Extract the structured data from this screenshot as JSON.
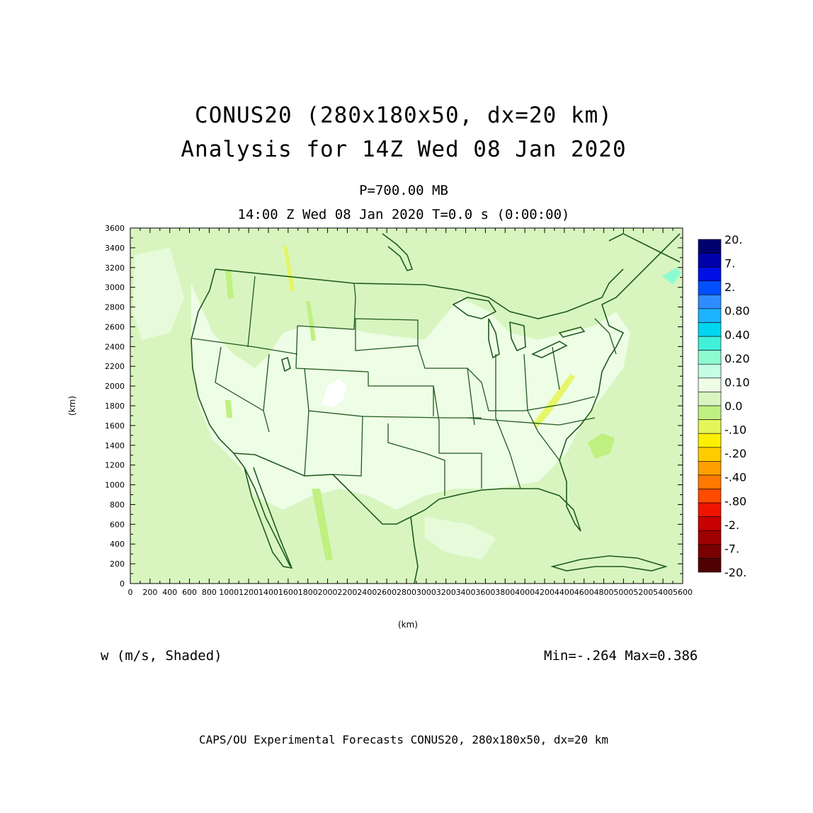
{
  "header": {
    "title": "CONUS20 (280x180x50, dx=20 km)",
    "subtitle": "Analysis for 14Z Wed 08 Jan 2020",
    "level": "P=700.00 MB",
    "time_line": "14:00 Z Wed 08 Jan 2020    T=0.0 s (0:00:00)"
  },
  "field": {
    "description": "w (m/s, Shaded)",
    "minmax": "Min=-.264 Max=0.386"
  },
  "footer": "CAPS/OU Experimental Forecasts  CONUS20, 280x180x50, dx=20 km",
  "map": {
    "boundary_color": "#1f5a1f",
    "background_color": "#d8f5c0",
    "near_zero_color": "#eefde6"
  },
  "chart_data": {
    "type": "heatmap",
    "xlabel": "(km)",
    "ylabel": "(km)",
    "xlim": [
      0,
      5600
    ],
    "ylim": [
      0,
      3600
    ],
    "x_ticks": [
      0,
      200,
      400,
      600,
      800,
      1000,
      1200,
      1400,
      1600,
      1800,
      2000,
      2200,
      2400,
      2600,
      2800,
      3000,
      3200,
      3400,
      3600,
      3800,
      4000,
      4200,
      4400,
      4600,
      4800,
      5000,
      5200,
      5400,
      5600
    ],
    "x_tick_labels": [
      "0",
      "200",
      "400",
      "600",
      "800",
      "1000",
      "1200",
      "1400",
      "1600",
      "1800",
      "2000",
      "2200",
      "2400",
      "2600",
      "2800",
      "3000",
      "3200",
      "3400",
      "3600",
      "3800",
      "4000",
      "4200",
      "4400",
      "4600",
      "4800",
      "5000",
      "5200",
      "5400",
      "5600"
    ],
    "y_ticks": [
      0,
      200,
      400,
      600,
      800,
      1000,
      1200,
      1400,
      1600,
      1800,
      2000,
      2200,
      2400,
      2600,
      2800,
      3000,
      3200,
      3400,
      3600
    ],
    "y_tick_labels": [
      "0",
      "200",
      "400",
      "600",
      "800",
      "1000",
      "1200",
      "1400",
      "1600",
      "1800",
      "2000",
      "2200",
      "2400",
      "2600",
      "2800",
      "3000",
      "3200",
      "3400",
      "3600"
    ],
    "colorbar": {
      "labels": [
        "20.",
        "7.",
        "2.",
        "0.80",
        "0.40",
        "0.20",
        "0.10",
        "0.0",
        "-.10",
        "-.20",
        "-.40",
        "-.80",
        "-2.",
        "-7.",
        "-20."
      ],
      "colors": [
        "#00006e",
        "#0000aa",
        "#0010e6",
        "#0050ff",
        "#2e8cff",
        "#1ab4ff",
        "#00d6f0",
        "#40f0d8",
        "#8cfcd0",
        "#c4fde4",
        "#eefde6",
        "#d8f5c0",
        "#c0f080",
        "#e4f55a",
        "#fcf000",
        "#ffcc00",
        "#ffa000",
        "#ff7800",
        "#ff4a00",
        "#f01400",
        "#c80000",
        "#a00000",
        "#780000",
        "#500000"
      ]
    }
  }
}
